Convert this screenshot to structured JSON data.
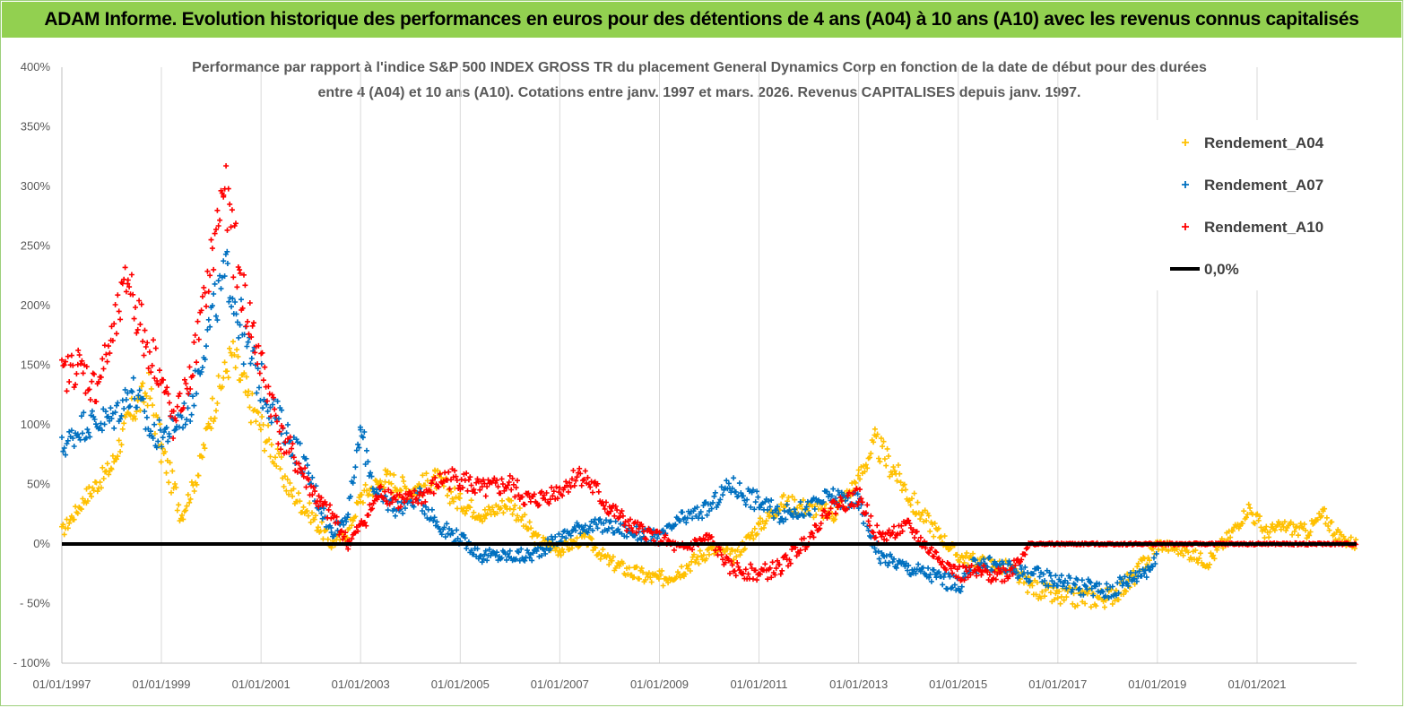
{
  "header": {
    "title": "ADAM Informe. Evolution historique des performances en euros pour des détentions de 4 ans (A04) à 10 ans (A10) avec les revenus connus capitalisés"
  },
  "chart_data": {
    "type": "scatter",
    "title_line1": "Performance par rapport à l'indice S&P 500 INDEX GROSS TR  du placement General Dynamics Corp en fonction de la date de début pour des durées",
    "title_line2": "entre 4 (A04) et 10 ans (A10). Cotations entre janv. 1997 et mars. 2026. Revenus CAPITALISES depuis janv. 1997.",
    "x_axis": {
      "type": "date",
      "range": [
        "1997-01-01",
        "2023-01-01"
      ],
      "tick_labels": [
        "01/01/1997",
        "01/01/1999",
        "01/01/2001",
        "01/01/2003",
        "01/01/2005",
        "01/01/2007",
        "01/01/2009",
        "01/01/2011",
        "01/01/2013",
        "01/01/2015",
        "01/01/2017",
        "01/01/2019",
        "01/01/2021"
      ]
    },
    "y_axis": {
      "unit": "%",
      "range": [
        -100,
        400
      ],
      "tick_labels": [
        "- 100%",
        "- 50%",
        "0%",
        "50%",
        "100%",
        "150%",
        "200%",
        "250%",
        "300%",
        "350%",
        "400%"
      ]
    },
    "grid": "vertical",
    "legend_position": "right",
    "legend": [
      {
        "label": "Rendement_A04",
        "color": "#ffc000",
        "marker": "+"
      },
      {
        "label": "Rendement_A07",
        "color": "#0070c0",
        "marker": "+"
      },
      {
        "label": "Rendement_A10",
        "color": "#ff0000",
        "marker": "+"
      },
      {
        "label": "0,0%",
        "color": "#000000",
        "marker": "line"
      }
    ],
    "reference_line": {
      "label": "0,0%",
      "y": 0
    },
    "series": [
      {
        "name": "Rendement_A04",
        "color": "#ffc000",
        "x": [
          "1997-01-01",
          "1997-07-01",
          "1998-01-01",
          "1998-05-01",
          "1998-10-01",
          "1999-01-01",
          "1999-06-01",
          "1999-10-01",
          "2000-01-01",
          "2000-06-01",
          "2000-10-01",
          "2001-03-01",
          "2001-08-01",
          "2002-01-01",
          "2002-06-01",
          "2002-10-01",
          "2003-01-01",
          "2003-07-01",
          "2004-01-01",
          "2004-07-01",
          "2005-01-01",
          "2005-07-01",
          "2006-01-01",
          "2006-07-01",
          "2007-01-01",
          "2007-07-01",
          "2008-01-01",
          "2008-07-01",
          "2009-01-01",
          "2009-07-01",
          "2010-01-01",
          "2010-07-01",
          "2011-01-01",
          "2011-07-01",
          "2012-01-01",
          "2012-07-01",
          "2013-01-01",
          "2013-05-01",
          "2013-10-01",
          "2014-03-01",
          "2014-08-01",
          "2015-01-01",
          "2015-06-01",
          "2016-01-01",
          "2016-06-01",
          "2017-01-01",
          "2017-07-01",
          "2018-01-01",
          "2018-07-01",
          "2019-01-01",
          "2019-07-01",
          "2020-01-01",
          "2020-06-01",
          "2020-11-01",
          "2021-03-01",
          "2021-08-01",
          "2022-01-01",
          "2022-05-01",
          "2022-09-01",
          "2023-01-01"
        ],
        "y": [
          10,
          40,
          65,
          105,
          130,
          80,
          25,
          60,
          110,
          160,
          120,
          85,
          45,
          25,
          0,
          10,
          40,
          55,
          45,
          55,
          35,
          25,
          35,
          5,
          -5,
          5,
          -15,
          -25,
          -30,
          -20,
          -5,
          -10,
          15,
          35,
          30,
          25,
          55,
          85,
          60,
          30,
          10,
          -10,
          -15,
          -20,
          -35,
          -45,
          -45,
          -45,
          -30,
          0,
          -5,
          -15,
          5,
          30,
          10,
          15,
          10,
          25,
          5,
          0
        ]
      },
      {
        "name": "Rendement_A07",
        "color": "#0070c0",
        "x": [
          "1997-01-01",
          "1997-06-01",
          "1998-01-01",
          "1998-06-01",
          "1998-11-01",
          "1999-03-01",
          "1999-08-01",
          "2000-01-01",
          "2000-05-01",
          "2000-09-01",
          "2001-02-01",
          "2001-06-01",
          "2001-11-01",
          "2002-03-01",
          "2002-06-01",
          "2002-10-01",
          "2003-01-01",
          "2003-05-01",
          "2003-10-01",
          "2004-03-01",
          "2004-08-01",
          "2005-01-01",
          "2005-06-01",
          "2006-01-01",
          "2006-06-01",
          "2007-01-01",
          "2007-06-01",
          "2008-01-01",
          "2008-06-01",
          "2009-01-01",
          "2009-06-01",
          "2010-01-01",
          "2010-06-01",
          "2011-01-01",
          "2011-06-01",
          "2012-01-01",
          "2012-06-01",
          "2013-01-01",
          "2013-06-01",
          "2014-01-01",
          "2014-06-01",
          "2015-01-01",
          "2015-06-01",
          "2016-01-01",
          "2016-06-01",
          "2017-01-01",
          "2017-06-01",
          "2018-01-01",
          "2018-06-01",
          "2019-01-01"
        ],
        "y": [
          80,
          100,
          105,
          130,
          90,
          95,
          115,
          190,
          230,
          170,
          125,
          100,
          70,
          35,
          10,
          25,
          95,
          40,
          30,
          40,
          15,
          5,
          -10,
          -10,
          -10,
          5,
          15,
          15,
          10,
          5,
          20,
          30,
          50,
          35,
          25,
          30,
          40,
          35,
          -10,
          -20,
          -25,
          -35,
          -15,
          -20,
          -25,
          -30,
          -35,
          -40,
          -30,
          -15
        ]
      },
      {
        "name": "Rendement_A10",
        "color": "#ff0000",
        "x": [
          "1997-01-01",
          "1997-05-01",
          "1997-09-01",
          "1998-01-01",
          "1998-05-01",
          "1998-09-01",
          "1998-12-01",
          "1999-04-01",
          "1999-08-01",
          "2000-01-01",
          "2000-04-01",
          "2000-08-01",
          "2001-01-01",
          "2001-06-01",
          "2001-11-01",
          "2002-03-01",
          "2002-07-01",
          "2002-10-01",
          "2003-02-01",
          "2003-06-01",
          "2003-11-01",
          "2004-04-01",
          "2004-09-01",
          "2005-01-01",
          "2005-06-01",
          "2006-01-01",
          "2006-06-01",
          "2007-01-01",
          "2007-06-01",
          "2008-01-01",
          "2008-06-01",
          "2009-01-01",
          "2009-06-01",
          "2010-01-01",
          "2010-06-01",
          "2011-01-01",
          "2011-06-01",
          "2012-01-01",
          "2012-06-01",
          "2013-01-01",
          "2013-06-01",
          "2014-01-01",
          "2014-06-01",
          "2015-01-01",
          "2015-06-01",
          "2016-01-01",
          "2016-06-01",
          "2017-01-01",
          "2018-01-01",
          "2019-01-01",
          "2020-01-01",
          "2021-01-01",
          "2022-01-01",
          "2023-01-01"
        ],
        "y": [
          140,
          150,
          130,
          170,
          225,
          170,
          150,
          100,
          140,
          235,
          300,
          220,
          150,
          90,
          60,
          35,
          20,
          0,
          20,
          45,
          35,
          40,
          55,
          55,
          45,
          50,
          35,
          45,
          60,
          30,
          15,
          5,
          -5,
          5,
          -20,
          -25,
          -20,
          5,
          30,
          40,
          5,
          15,
          -5,
          -25,
          -25,
          -25,
          0,
          0,
          0,
          0,
          0,
          0,
          0,
          0
        ]
      }
    ]
  }
}
